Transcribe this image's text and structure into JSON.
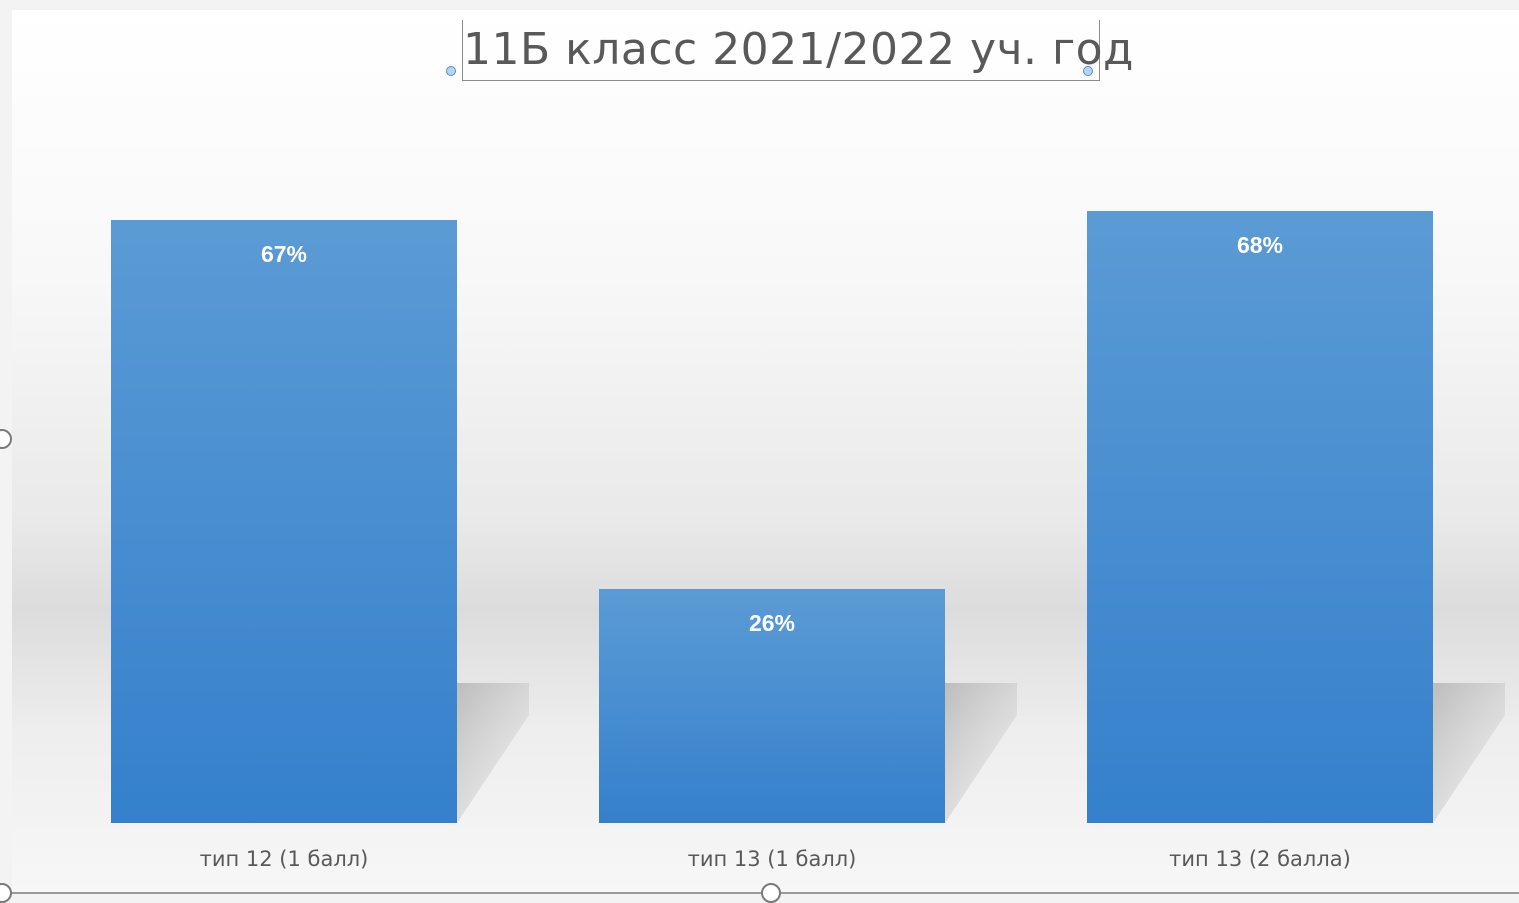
{
  "chart_data": {
    "type": "bar",
    "title": "11Б класс 2021/2022 уч. год",
    "categories": [
      "тип 12 (1 балл)",
      "тип 13 (1 балл)",
      "тип 13 (2 балла)"
    ],
    "values": [
      67,
      26,
      68
    ],
    "data_labels": [
      "67%",
      "26%",
      "68%"
    ],
    "xlabel": "",
    "ylabel": "",
    "ylim": [
      0,
      100
    ],
    "grid": false,
    "legend": "none",
    "bar_color": "#4a90d9",
    "bar_color_light": "#5b9bd5",
    "bar_color_dark": "#3580cc"
  }
}
